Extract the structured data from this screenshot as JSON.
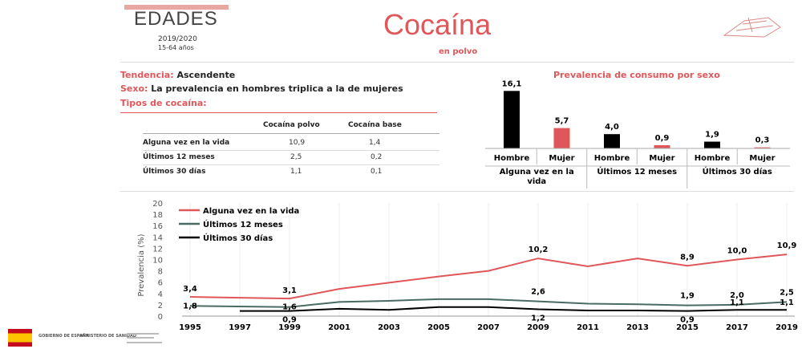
{
  "header": {
    "brand": "EDADES",
    "period": "2019/2020",
    "ages": "15-64 años",
    "title": "Cocaína",
    "subtitle": "en polvo"
  },
  "info": {
    "tendencia_key": "Tendencia:",
    "tendencia_val": "Ascendente",
    "sexo_key": "Sexo:",
    "sexo_val": "La prevalencia en hombres triplica a la de mujeres",
    "tipos_key": "Tipos de cocaína:"
  },
  "table": {
    "headers": [
      "Cocaína polvo",
      "Cocaína base"
    ],
    "rows": [
      {
        "label": "Alguna vez en la vida",
        "polvo": "10,9",
        "base": "1,4"
      },
      {
        "label": "Últimos 12 meses",
        "polvo": "2,5",
        "base": "0,2"
      },
      {
        "label": "Últimos 30 días",
        "polvo": "1,1",
        "base": "0,1"
      }
    ]
  },
  "colors": {
    "accent": "#e0575a",
    "black": "#000000",
    "green": "#4a6b64"
  },
  "chart_data": [
    {
      "type": "bar",
      "title": "Prevalencia de consumo por sexo",
      "groups": [
        "Alguna vez en la vida",
        "Últimos 12 meses",
        "Últimos 30 días"
      ],
      "categories": [
        "Hombre",
        "Mujer",
        "Hombre",
        "Mujer",
        "Hombre",
        "Mujer"
      ],
      "values": [
        16.1,
        5.7,
        4.0,
        0.9,
        1.9,
        0.3
      ],
      "labels": [
        "16,1",
        "5,7",
        "4,0",
        "0,9",
        "1,9",
        "0,3"
      ],
      "bar_colors": [
        "#000000",
        "#e0575a",
        "#000000",
        "#e0575a",
        "#000000",
        "#e0575a"
      ]
    },
    {
      "type": "line",
      "ylabel": "Prevalencia (%)",
      "ylim": [
        0,
        20
      ],
      "yticks": [
        0,
        2,
        4,
        6,
        8,
        10,
        12,
        14,
        16,
        18,
        20
      ],
      "x": [
        1995,
        1997,
        1999,
        2001,
        2003,
        2005,
        2007,
        2009,
        2011,
        2013,
        2015,
        2017,
        2019
      ],
      "legend_position": "top-left",
      "series": [
        {
          "name": "Alguna vez en la vida",
          "color": "#e0575a",
          "values": [
            3.4,
            null,
            3.1,
            4.8,
            5.9,
            7.0,
            8.0,
            10.2,
            8.8,
            10.2,
            8.9,
            10.0,
            10.9
          ],
          "labels": {
            "1995": "3,4",
            "1999": "3,1",
            "2009": "10,2",
            "2015": "8,9",
            "2017": "10,0",
            "2019": "10,9"
          }
        },
        {
          "name": "Últimos 12 meses",
          "color": "#4a6b64",
          "values": [
            1.8,
            null,
            1.6,
            2.5,
            2.7,
            3.0,
            3.0,
            2.6,
            2.2,
            2.1,
            1.9,
            2.0,
            2.5
          ],
          "labels": {
            "1995": "1,8",
            "1999": "1,6",
            "2009": "2,6",
            "2015": "1,9",
            "2017": "2,0",
            "2019": "2,5"
          }
        },
        {
          "name": "Últimos 30 días",
          "color": "#000000",
          "values": [
            null,
            0.9,
            0.9,
            1.3,
            1.1,
            1.6,
            1.6,
            1.2,
            1.0,
            1.0,
            0.9,
            1.1,
            1.1
          ],
          "labels": {
            "1999": "0,9",
            "2009": "1,2",
            "2015": "0,9",
            "2017": "1,1",
            "2019": "1,1"
          }
        }
      ]
    }
  ],
  "footer": {
    "gov1": "GOBIERNO DE ESPAÑA",
    "gov2": "MINISTERIO DE SANIDAD"
  }
}
